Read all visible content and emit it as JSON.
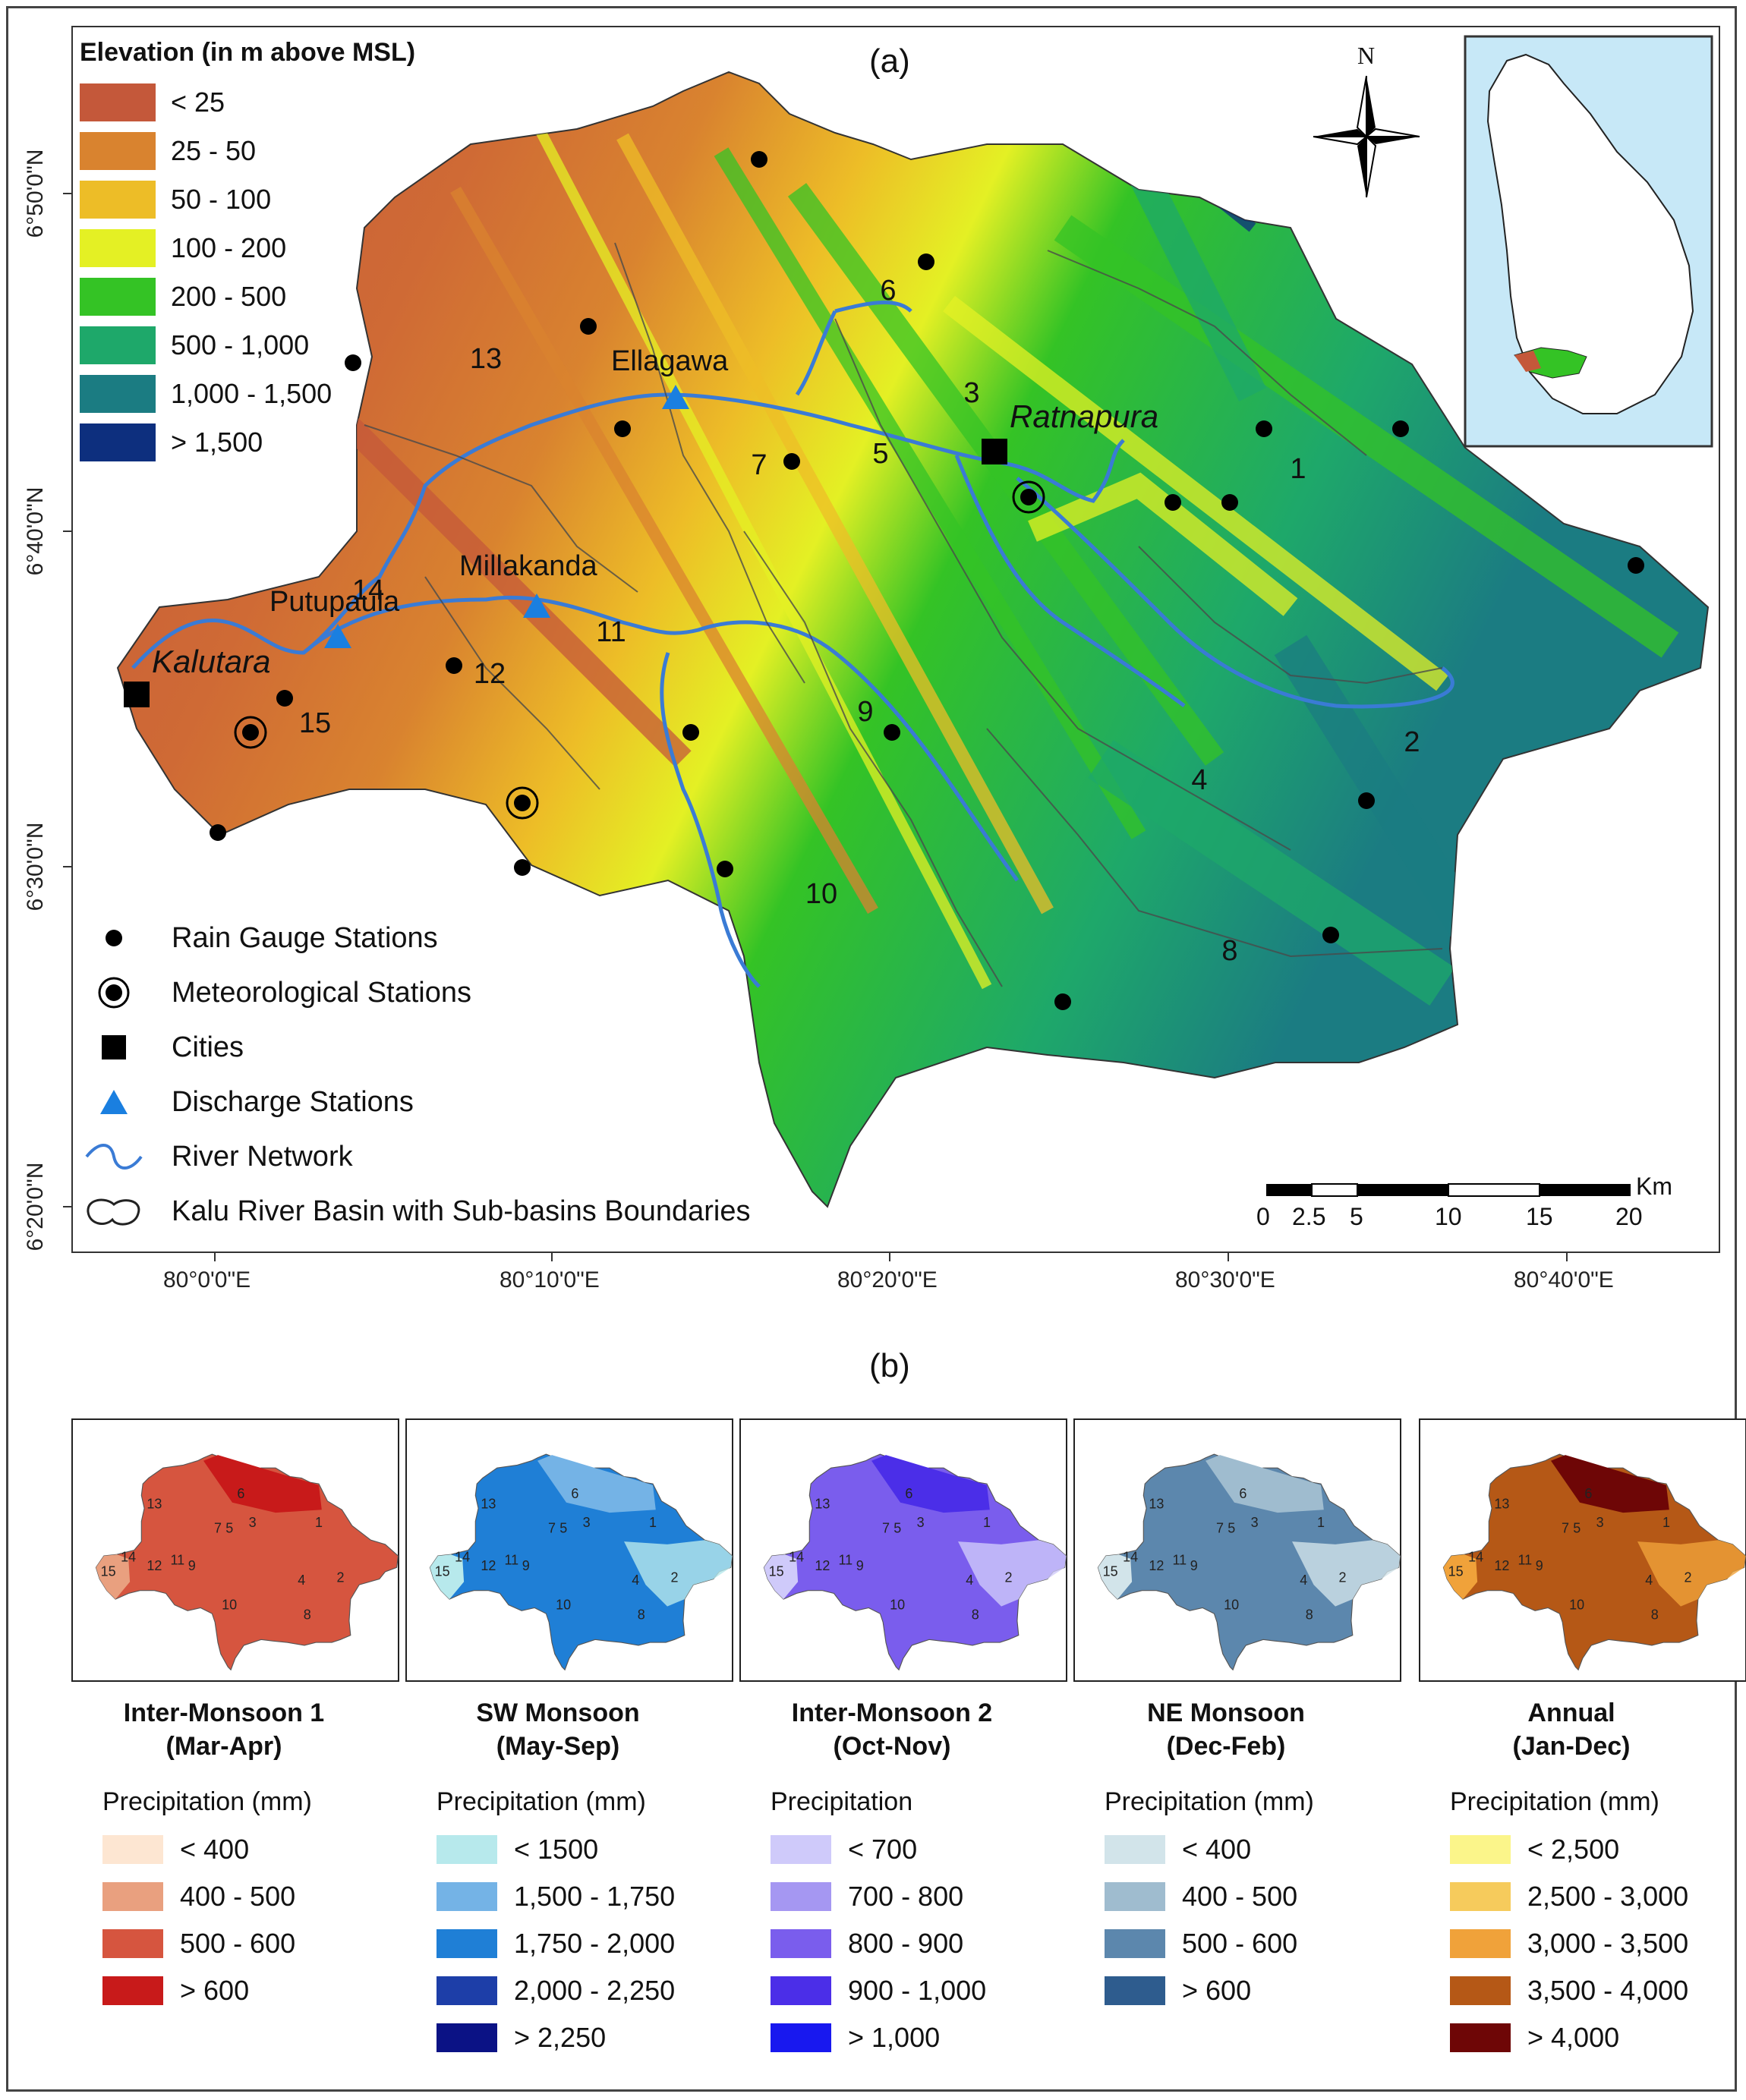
{
  "panel_a": {
    "label": "(a)",
    "legend_title": "Elevation (in m above MSL)",
    "legend": [
      {
        "label": "< 25",
        "color": "#c4583a"
      },
      {
        "label": "25 - 50",
        "color": "#d9832f"
      },
      {
        "label": "50 - 100",
        "color": "#edbd27"
      },
      {
        "label": "100 - 200",
        "color": "#e4f024"
      },
      {
        "label": "200 - 500",
        "color": "#34c325"
      },
      {
        "label": "500 - 1,000",
        "color": "#1ea86a"
      },
      {
        "label": "1,000 - 1,500",
        "color": "#1b7c82"
      },
      {
        "label": "> 1,500",
        "color": "#0d2f7e"
      }
    ],
    "north_label": "N",
    "places": {
      "ellagawa": "Ellagawa",
      "ratnapura": "Ratnapura",
      "millakanda": "Millakanda",
      "putupaula": "Putupaula",
      "kalutara": "Kalutara"
    },
    "subbasins": [
      "1",
      "2",
      "3",
      "4",
      "5",
      "6",
      "7",
      "8",
      "9",
      "10",
      "11",
      "12",
      "13",
      "14",
      "15"
    ],
    "lat_ticks": [
      "6°50'0\"N",
      "6°40'0\"N",
      "6°30'0\"N",
      "6°20'0\"N"
    ],
    "lon_ticks": [
      "80°0'0\"E",
      "80°10'0\"E",
      "80°20'0\"E",
      "80°30'0\"E",
      "80°40'0\"E"
    ],
    "symbol_legend": [
      {
        "icon": "dot-icon",
        "label": "Rain Gauge Stations"
      },
      {
        "icon": "ringed-dot-icon",
        "label": "Meteorological Stations"
      },
      {
        "icon": "square-icon",
        "label": "Cities"
      },
      {
        "icon": "triangle-icon",
        "label": "Discharge Stations"
      },
      {
        "icon": "wave-line-icon",
        "label": "River Network"
      },
      {
        "icon": "outline-blob-icon",
        "label": "Kalu River Basin with Sub-basins Boundaries"
      }
    ],
    "scale_bar": {
      "unit": "Km",
      "ticks": [
        "0",
        "2.5",
        "5",
        "10",
        "15",
        "20"
      ]
    }
  },
  "panel_b": {
    "label": "(b)",
    "maps": [
      {
        "title_line1": "Inter-Monsoon 1",
        "title_line2": "(Mar-Apr)",
        "legend_title": "Precipitation (mm)",
        "classes": [
          {
            "label": "< 400",
            "color": "#fde6d2"
          },
          {
            "label": "400 - 500",
            "color": "#e9a07f"
          },
          {
            "label": "500 - 600",
            "color": "#d6553f"
          },
          {
            "label": "> 600",
            "color": "#c81a1a"
          }
        ]
      },
      {
        "title_line1": "SW Monsoon",
        "title_line2": "(May-Sep)",
        "legend_title": "Precipitation (mm)",
        "classes": [
          {
            "label": "< 1500",
            "color": "#b7e9ec"
          },
          {
            "label": "1,500 - 1,750",
            "color": "#74b3e6"
          },
          {
            "label": "1,750 - 2,000",
            "color": "#1f7fd6"
          },
          {
            "label": "2,000 - 2,250",
            "color": "#1d3ea8"
          },
          {
            "label": "> 2,250",
            "color": "#0b1285"
          }
        ]
      },
      {
        "title_line1": "Inter-Monsoon 2",
        "title_line2": "(Oct-Nov)",
        "legend_title": "Precipitation",
        "classes": [
          {
            "label": "< 700",
            "color": "#cfcafa"
          },
          {
            "label": "700 - 800",
            "color": "#a597f2"
          },
          {
            "label": "800 - 900",
            "color": "#7a5ded"
          },
          {
            "label": "900 - 1,000",
            "color": "#4b2ee8"
          },
          {
            "label": "> 1,000",
            "color": "#1818ef"
          }
        ]
      },
      {
        "title_line1": "NE Monsoon",
        "title_line2": "(Dec-Feb)",
        "legend_title": "Precipitation (mm)",
        "classes": [
          {
            "label": "< 400",
            "color": "#d2e4ea"
          },
          {
            "label": "400 - 500",
            "color": "#9fbccf"
          },
          {
            "label": "500 - 600",
            "color": "#5c87ad"
          },
          {
            "label": "> 600",
            "color": "#2e5c8e"
          }
        ]
      },
      {
        "title_line1": "Annual",
        "title_line2": "(Jan-Dec)",
        "legend_title": "Precipitation (mm)",
        "classes": [
          {
            "label": "< 2,500",
            "color": "#fbf58a"
          },
          {
            "label": "2,500 - 3,000",
            "color": "#f6cb5c"
          },
          {
            "label": "3,000 - 3,500",
            "color": "#f0a23a"
          },
          {
            "label": "3,500 - 4,000",
            "color": "#b55816"
          },
          {
            "label": "> 4,000",
            "color": "#6e0606"
          }
        ]
      }
    ]
  }
}
